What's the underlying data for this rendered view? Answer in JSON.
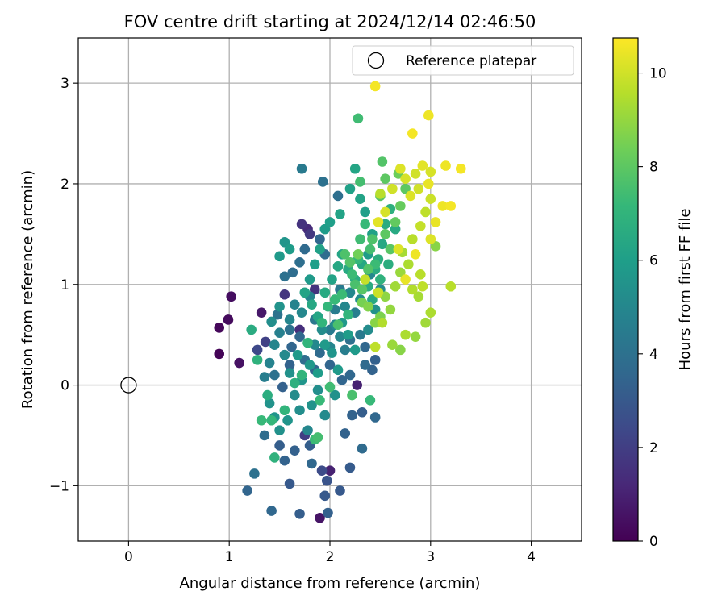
{
  "chart_data": {
    "type": "scatter",
    "title": "FOV centre drift starting at 2024/12/14 02:46:50",
    "xlabel": "Angular distance from reference (arcmin)",
    "ylabel": "Rotation from reference (arcmin)",
    "xlim": [
      -0.5,
      4.5
    ],
    "ylim": [
      -1.55,
      3.45
    ],
    "xticks": [
      0,
      1,
      2,
      3,
      4
    ],
    "xtick_labels": [
      "0",
      "1",
      "2",
      "3",
      "4"
    ],
    "yticks": [
      -1,
      0,
      1,
      2,
      3
    ],
    "ytick_labels": [
      "−1",
      "0",
      "1",
      "2",
      "3"
    ],
    "grid": true,
    "legend": {
      "placement": "top-right",
      "entries": [
        "Reference platepar"
      ]
    },
    "reference_point": {
      "name": "Reference platepar",
      "x": 0,
      "y": 0,
      "marker": "hollow-circle"
    },
    "colorbar": {
      "label": "Hours from first FF file",
      "range": [
        0,
        10.75
      ],
      "ticks": [
        0,
        2,
        4,
        6,
        8,
        10
      ],
      "tick_labels": [
        "0",
        "2",
        "4",
        "6",
        "8",
        "10"
      ],
      "colormap": "viridis",
      "stops": [
        "#440154",
        "#482878",
        "#3e4989",
        "#31688e",
        "#26828e",
        "#1f9e89",
        "#35b779",
        "#6ece58",
        "#b5de2b",
        "#fde725"
      ]
    },
    "points": [
      [
        0.9,
        0.31,
        0.1
      ],
      [
        0.9,
        0.57,
        0.2
      ],
      [
        0.99,
        0.65,
        0.3
      ],
      [
        1.02,
        0.88,
        0.4
      ],
      [
        1.1,
        0.22,
        0.5
      ],
      [
        1.32,
        0.72,
        0.7
      ],
      [
        1.9,
        -1.32,
        0.6
      ],
      [
        2.27,
        0.0,
        1.0
      ],
      [
        2.0,
        -0.85,
        1.0
      ],
      [
        1.7,
        0.55,
        1.4
      ],
      [
        1.85,
        0.95,
        1.6
      ],
      [
        1.55,
        0.9,
        1.7
      ],
      [
        1.72,
        1.6,
        1.6
      ],
      [
        1.8,
        1.5,
        1.8
      ],
      [
        1.78,
        1.55,
        1.3
      ],
      [
        1.36,
        0.43,
        2.1
      ],
      [
        1.28,
        0.35,
        2.4
      ],
      [
        1.75,
        -0.5,
        2.0
      ],
      [
        1.92,
        -0.85,
        2.5
      ],
      [
        1.97,
        -0.95,
        2.8
      ],
      [
        1.6,
        -0.98,
        3.0
      ],
      [
        1.95,
        -1.1,
        3.0
      ],
      [
        2.1,
        -1.05,
        3.0
      ],
      [
        2.2,
        -0.82,
        3.1
      ],
      [
        1.98,
        -1.27,
        3.3
      ],
      [
        1.7,
        -1.28,
        3.2
      ],
      [
        1.42,
        -1.25,
        3.6
      ],
      [
        1.18,
        -1.05,
        3.5
      ],
      [
        1.25,
        -0.88,
        4.0
      ],
      [
        1.35,
        -0.5,
        3.8
      ],
      [
        1.5,
        -0.6,
        3.2
      ],
      [
        1.55,
        -0.75,
        3.4
      ],
      [
        1.65,
        -0.65,
        3.3
      ],
      [
        1.8,
        -0.6,
        3.2
      ],
      [
        1.82,
        -0.78,
        3.6
      ],
      [
        2.15,
        -0.48,
        3.4
      ],
      [
        2.22,
        -0.3,
        3.4
      ],
      [
        2.32,
        -0.27,
        3.2
      ],
      [
        2.45,
        -0.32,
        3.6
      ],
      [
        2.32,
        -0.63,
        3.7
      ],
      [
        1.53,
        -0.02,
        3.3
      ],
      [
        1.6,
        0.2,
        3.4
      ],
      [
        1.62,
        0.38,
        3.5
      ],
      [
        1.7,
        0.48,
        3.6
      ],
      [
        1.75,
        0.25,
        3.8
      ],
      [
        1.85,
        0.15,
        3.4
      ],
      [
        1.9,
        0.32,
        3.7
      ],
      [
        2.0,
        0.2,
        3.5
      ],
      [
        2.12,
        0.05,
        3.5
      ],
      [
        2.2,
        0.1,
        3.6
      ],
      [
        2.35,
        0.2,
        3.7
      ],
      [
        2.42,
        0.15,
        3.4
      ],
      [
        2.45,
        0.25,
        3.3
      ],
      [
        2.35,
        0.38,
        3.6
      ],
      [
        2.2,
        0.45,
        4.0
      ],
      [
        1.45,
        0.1,
        4.0
      ],
      [
        1.55,
        0.3,
        4.2
      ],
      [
        1.6,
        0.55,
        4.0
      ],
      [
        1.48,
        0.7,
        4.1
      ],
      [
        1.55,
        1.08,
        4.0
      ],
      [
        1.63,
        1.12,
        3.8
      ],
      [
        1.7,
        1.22,
        3.9
      ],
      [
        1.75,
        1.35,
        3.7
      ],
      [
        1.9,
        1.45,
        3.6
      ],
      [
        1.95,
        1.3,
        3.8
      ],
      [
        1.72,
        2.15,
        4.4
      ],
      [
        1.93,
        2.02,
        4.0
      ],
      [
        2.08,
        1.88,
        3.9
      ],
      [
        1.85,
        0.65,
        4.3
      ],
      [
        2.0,
        0.55,
        4.4
      ],
      [
        2.05,
        0.75,
        4.5
      ],
      [
        2.1,
        0.95,
        4.4
      ],
      [
        2.25,
        0.72,
        4.6
      ],
      [
        2.3,
        0.5,
        4.4
      ],
      [
        2.15,
        0.35,
        4.6
      ],
      [
        1.35,
        0.08,
        4.6
      ],
      [
        1.4,
        0.22,
        4.8
      ],
      [
        1.45,
        0.4,
        4.9
      ],
      [
        1.5,
        0.52,
        4.7
      ],
      [
        1.6,
        0.65,
        4.9
      ],
      [
        1.65,
        0.8,
        4.8
      ],
      [
        1.72,
        0.72,
        5.0
      ],
      [
        1.8,
        0.88,
        4.9
      ],
      [
        1.85,
        0.4,
        5.0
      ],
      [
        1.92,
        0.55,
        5.2
      ],
      [
        2.0,
        0.38,
        4.9
      ],
      [
        2.05,
        0.6,
        5.1
      ],
      [
        2.1,
        0.48,
        5.0
      ],
      [
        2.15,
        0.78,
        5.0
      ],
      [
        2.2,
        0.92,
        5.0
      ],
      [
        2.3,
        0.85,
        5.3
      ],
      [
        2.38,
        0.55,
        5.2
      ],
      [
        2.45,
        0.75,
        5.4
      ],
      [
        2.5,
        0.95,
        5.2
      ],
      [
        2.4,
        1.1,
        5.0
      ],
      [
        1.42,
        0.63,
        5.3
      ],
      [
        1.5,
        0.78,
        5.5
      ],
      [
        1.55,
        0.3,
        5.1
      ],
      [
        1.6,
        0.12,
        5.4
      ],
      [
        1.65,
        -0.1,
        5.2
      ],
      [
        1.7,
        -0.25,
        5.3
      ],
      [
        1.78,
        -0.45,
        5.0
      ],
      [
        1.82,
        -0.2,
        5.5
      ],
      [
        1.88,
        -0.05,
        5.3
      ],
      [
        1.95,
        -0.3,
        5.1
      ],
      [
        2.05,
        -0.1,
        5.4
      ],
      [
        1.4,
        -0.18,
        5.5
      ],
      [
        1.45,
        -0.32,
        5.6
      ],
      [
        1.5,
        -0.45,
        5.4
      ],
      [
        1.58,
        -0.35,
        5.6
      ],
      [
        1.68,
        0.3,
        5.8
      ],
      [
        1.72,
        0.05,
        5.6
      ],
      [
        1.8,
        0.2,
        5.7
      ],
      [
        1.88,
        0.12,
        5.9
      ],
      [
        1.95,
        0.4,
        5.8
      ],
      [
        2.02,
        0.32,
        5.6
      ],
      [
        2.08,
        0.15,
        5.8
      ],
      [
        2.12,
        0.62,
        5.7
      ],
      [
        2.18,
        0.5,
        5.9
      ],
      [
        2.25,
        0.35,
        5.8
      ],
      [
        1.5,
        1.28,
        5.8
      ],
      [
        1.55,
        1.42,
        5.6
      ],
      [
        1.6,
        1.35,
        5.9
      ],
      [
        1.8,
        1.05,
        5.8
      ],
      [
        1.85,
        1.2,
        6.0
      ],
      [
        1.9,
        1.35,
        6.1
      ],
      [
        1.95,
        1.55,
        5.9
      ],
      [
        2.0,
        1.62,
        6.0
      ],
      [
        2.1,
        1.7,
        6.2
      ],
      [
        2.2,
        1.95,
        6.1
      ],
      [
        2.25,
        2.15,
        6.3
      ],
      [
        2.3,
        1.85,
        6.2
      ],
      [
        2.35,
        1.72,
        6.0
      ],
      [
        2.42,
        1.5,
        6.1
      ],
      [
        2.38,
        1.3,
        5.9
      ],
      [
        1.75,
        0.92,
        6.2
      ],
      [
        1.82,
        0.8,
        6.4
      ],
      [
        1.88,
        0.68,
        6.3
      ],
      [
        1.95,
        0.92,
        6.5
      ],
      [
        2.02,
        1.05,
        6.2
      ],
      [
        2.08,
        1.18,
        6.4
      ],
      [
        2.12,
        1.3,
        6.3
      ],
      [
        2.18,
        1.15,
        6.5
      ],
      [
        2.25,
        1.05,
        6.6
      ],
      [
        2.32,
        1.2,
        6.4
      ],
      [
        2.38,
        0.98,
        6.6
      ],
      [
        2.42,
        0.85,
        6.5
      ],
      [
        2.48,
        1.25,
        6.7
      ],
      [
        2.52,
        1.4,
        6.4
      ],
      [
        2.55,
        1.6,
        6.6
      ],
      [
        2.6,
        1.75,
        6.8
      ],
      [
        2.65,
        1.55,
        6.5
      ],
      [
        2.58,
        1.2,
        6.7
      ],
      [
        2.5,
        1.05,
        6.9
      ],
      [
        2.45,
        1.15,
        6.6
      ],
      [
        1.22,
        0.55,
        6.6
      ],
      [
        1.28,
        0.25,
        6.9
      ],
      [
        1.32,
        -0.35,
        7.2
      ],
      [
        1.38,
        -0.1,
        6.7
      ],
      [
        1.42,
        -0.35,
        7.1
      ],
      [
        1.45,
        -0.72,
        6.9
      ],
      [
        1.55,
        -0.25,
        7.0
      ],
      [
        1.65,
        0.02,
        6.8
      ],
      [
        1.72,
        0.1,
        7.0
      ],
      [
        1.78,
        0.42,
        7.0
      ],
      [
        1.85,
        -0.54,
        7.3
      ],
      [
        1.88,
        -0.52,
        7.5
      ],
      [
        1.9,
        -0.15,
        7.2
      ],
      [
        1.92,
        0.62,
        7.0
      ],
      [
        1.98,
        0.78,
        7.1
      ],
      [
        2.05,
        0.85,
        7.2
      ],
      [
        2.12,
        0.9,
        7.3
      ],
      [
        2.18,
        0.7,
        7.0
      ],
      [
        2.22,
        1.1,
        7.3
      ],
      [
        2.28,
        1.25,
        7.1
      ],
      [
        2.3,
        1.45,
        7.4
      ],
      [
        2.35,
        1.6,
        7.2
      ],
      [
        2.4,
        1.35,
        7.5
      ],
      [
        2.45,
        1.2,
        7.3
      ],
      [
        2.3,
        2.02,
        7.5
      ],
      [
        2.28,
        2.65,
        7.4
      ],
      [
        2.4,
        -0.15,
        7.2
      ],
      [
        2.22,
        -0.1,
        7.6
      ],
      [
        2.0,
        -0.02,
        7.4
      ],
      [
        2.08,
        0.6,
        7.6
      ],
      [
        2.15,
        1.3,
        7.7
      ],
      [
        2.2,
        1.22,
        7.8
      ],
      [
        2.25,
        1.0,
        7.6
      ],
      [
        2.32,
        0.95,
        7.9
      ],
      [
        2.38,
        1.15,
        7.8
      ],
      [
        2.42,
        1.45,
        7.7
      ],
      [
        2.5,
        1.88,
        7.9
      ],
      [
        2.55,
        1.5,
        8.0
      ],
      [
        2.6,
        1.35,
        7.9
      ],
      [
        2.65,
        1.62,
        8.1
      ],
      [
        2.7,
        1.78,
        8.2
      ],
      [
        2.75,
        1.95,
        8.0
      ],
      [
        2.68,
        2.1,
        8.3
      ],
      [
        2.55,
        2.05,
        8.0
      ],
      [
        2.52,
        2.22,
        7.8
      ],
      [
        2.28,
        1.3,
        8.4
      ],
      [
        2.32,
        0.82,
        8.5
      ],
      [
        2.38,
        0.78,
        8.7
      ],
      [
        2.45,
        0.62,
        8.8
      ],
      [
        2.5,
        0.68,
        8.6
      ],
      [
        2.55,
        0.88,
        8.9
      ],
      [
        2.6,
        0.75,
        9.0
      ],
      [
        2.65,
        0.98,
        9.2
      ],
      [
        2.7,
        1.12,
        9.1
      ],
      [
        2.72,
        1.32,
        9.3
      ],
      [
        2.78,
        1.2,
        9.4
      ],
      [
        2.82,
        0.95,
        9.5
      ],
      [
        2.88,
        0.88,
        9.3
      ],
      [
        2.9,
        1.1,
        9.6
      ],
      [
        2.95,
        0.62,
        9.2
      ],
      [
        2.85,
        0.48,
        9.0
      ],
      [
        2.75,
        0.5,
        9.4
      ],
      [
        2.62,
        0.4,
        9.1
      ],
      [
        2.45,
        0.38,
        9.7
      ],
      [
        2.7,
        0.35,
        8.8
      ],
      [
        2.82,
        1.45,
        9.6
      ],
      [
        2.9,
        1.58,
        9.8
      ],
      [
        2.95,
        1.72,
        9.7
      ],
      [
        3.0,
        1.85,
        9.9
      ],
      [
        2.88,
        1.95,
        10.0
      ],
      [
        2.75,
        2.05,
        10.1
      ],
      [
        2.7,
        2.15,
        10.2
      ],
      [
        2.85,
        2.1,
        10.0
      ],
      [
        2.92,
        2.18,
        10.3
      ],
      [
        3.0,
        2.12,
        10.1
      ],
      [
        2.98,
        2.0,
        10.4
      ],
      [
        2.8,
        1.88,
        10.2
      ],
      [
        2.62,
        1.95,
        10.0
      ],
      [
        2.55,
        1.72,
        10.1
      ],
      [
        2.48,
        1.62,
        10.3
      ],
      [
        2.68,
        1.35,
        10.2
      ],
      [
        2.75,
        1.05,
        10.4
      ],
      [
        2.85,
        1.3,
        10.5
      ],
      [
        3.0,
        1.45,
        10.2
      ],
      [
        3.05,
        1.62,
        10.4
      ],
      [
        3.12,
        1.78,
        10.5
      ],
      [
        3.2,
        1.78,
        10.6
      ],
      [
        3.3,
        2.15,
        10.6
      ],
      [
        3.15,
        2.18,
        10.5
      ],
      [
        2.98,
        2.68,
        10.5
      ],
      [
        2.82,
        2.5,
        10.6
      ],
      [
        2.45,
        2.97,
        10.6
      ],
      [
        2.5,
        1.9,
        9.6
      ],
      [
        2.92,
        0.98,
        9.7
      ],
      [
        3.2,
        0.98,
        9.6
      ],
      [
        2.52,
        0.62,
        9.5
      ],
      [
        2.48,
        0.92,
        9.9
      ],
      [
        2.35,
        1.05,
        9.8
      ],
      [
        3.0,
        0.72,
        9.4
      ],
      [
        3.05,
        1.38,
        8.8
      ]
    ]
  }
}
